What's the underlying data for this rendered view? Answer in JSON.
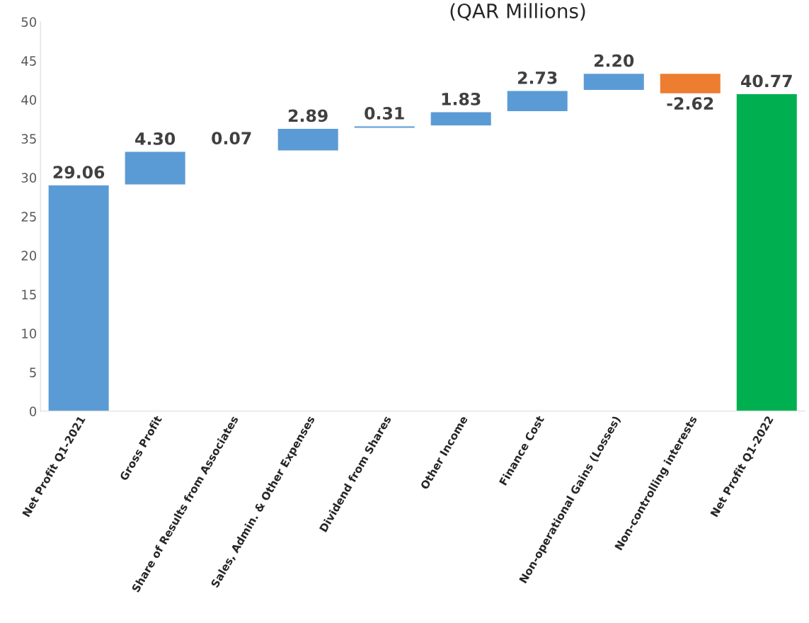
{
  "chart_data": {
    "type": "bar",
    "title": "(QAR Millions)",
    "categories": [
      "Net Profit Q1-2021",
      "Gross Profit",
      "Share of Results from Associates",
      "Sales, Admin. & Other Expenses",
      "Dividend from Shares",
      "Other Income",
      "Finance Cost",
      "Non-operational Gains (Losses)",
      "Non-controlling interests",
      "Net Profit Q1-2022"
    ],
    "values": [
      29.06,
      4.3,
      0.07,
      2.89,
      0.31,
      1.83,
      2.73,
      2.2,
      -2.62,
      40.77
    ],
    "base": [
      0,
      29.06,
      33.36,
      33.43,
      36.32,
      36.63,
      38.46,
      41.19,
      43.39,
      0
    ],
    "value_labels": [
      "29.06",
      "4.30",
      "0.07",
      "2.89",
      "0.31",
      "1.83",
      "2.73",
      "2.20",
      "-2.62",
      "40.77"
    ],
    "colors": [
      "#5b9bd5",
      "#5b9bd5",
      "#5b9bd5",
      "#5b9bd5",
      "#5b9bd5",
      "#5b9bd5",
      "#5b9bd5",
      "#5b9bd5",
      "#ed7d31",
      "#00b050"
    ],
    "ylim": [
      0,
      50
    ],
    "yticks": [
      0,
      5,
      10,
      15,
      20,
      25,
      30,
      35,
      40,
      45,
      50
    ],
    "grid": false,
    "legend": false
  }
}
